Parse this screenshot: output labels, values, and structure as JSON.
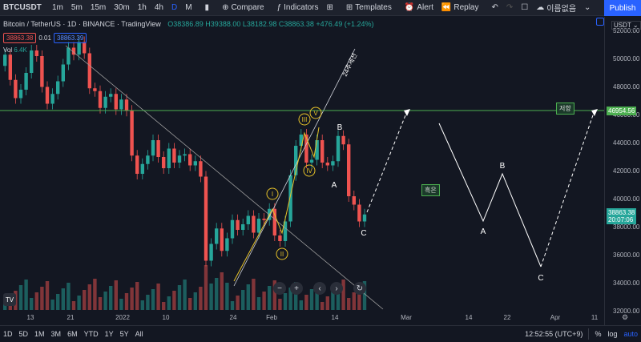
{
  "topbar": {
    "symbol": "BTCUSDT",
    "intervals": [
      "1m",
      "5m",
      "15m",
      "30m",
      "1h",
      "4h",
      "D",
      "M"
    ],
    "active_interval": "D",
    "compare": "Compare",
    "indicators": "Indicators",
    "templates": "Templates",
    "alert": "Alert",
    "replay": "Replay",
    "layout_name": "이름없음",
    "publish": "Publish"
  },
  "legend": {
    "title": "Bitcoin / TetherUS · 1D · BINANCE · TradingView",
    "ohlc": "O38386.89 H39388.00 L38182.98 C38863.38 +476.49 (+1.24%)",
    "bid": "38863.38",
    "spread": "0.01",
    "ask": "38863.39",
    "volume_label": "Vol",
    "volume_value": "6.4K"
  },
  "currency": "USDT",
  "colors": {
    "up": "#26a69a",
    "down": "#ef5350",
    "line": "#4caf50",
    "accent": "#2962ff",
    "wave": "#e6c229"
  },
  "chart_data": {
    "type": "candlestick",
    "symbol": "BTCUSDT",
    "ylim": [
      31000,
      53000
    ],
    "y_ticks": [
      "52000.00",
      "50000.00",
      "48000.00",
      "46000.00",
      "44000.00",
      "42000.00",
      "40000.00",
      "38000.00",
      "36000.00",
      "34000.00",
      "32000.00"
    ],
    "x_ticks": [
      "13",
      "21",
      "2022",
      "10",
      "24",
      "Feb",
      "14",
      "Mar",
      "14",
      "22",
      "Apr",
      "11"
    ],
    "last_price": "38863.38",
    "countdown": "20:07:06",
    "resistance_price": "46954.56",
    "annotations": {
      "resistance_label": "저항",
      "support_label": "흑은",
      "trendline_label": "24추세선",
      "waves": [
        "I",
        "II",
        "III",
        "IV",
        "V"
      ],
      "corrective": [
        "A",
        "B",
        "C"
      ],
      "projection": [
        "A",
        "B",
        "C"
      ]
    }
  },
  "bottombar": {
    "ranges": [
      "1D",
      "5D",
      "1M",
      "3M",
      "6M",
      "YTD",
      "1Y",
      "5Y",
      "All"
    ],
    "time": "12:52:55 (UTC+9)",
    "percent": "%",
    "log": "log",
    "auto": "auto"
  }
}
